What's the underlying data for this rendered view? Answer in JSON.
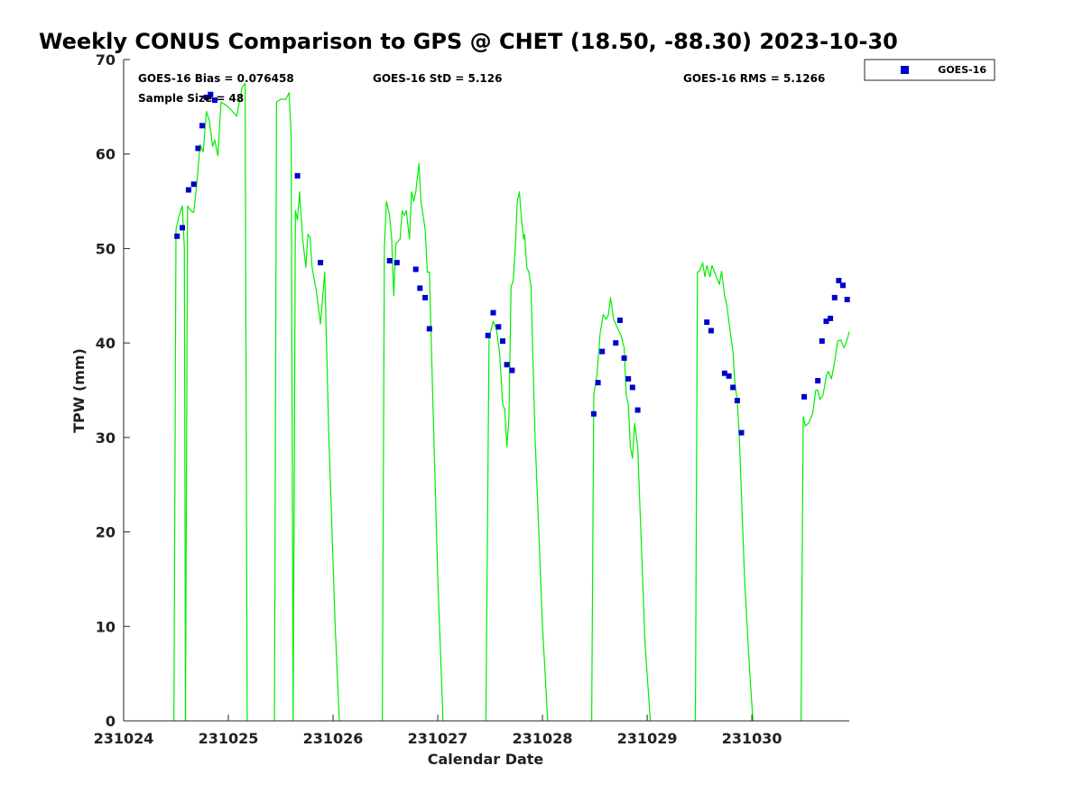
{
  "chart_data": {
    "type": "scatter",
    "title": "Weekly CONUS Comparison to GPS @ CHET (18.50, -88.30) 2023-10-30",
    "xlabel": "Calendar Date",
    "ylabel": "TPW (mm)",
    "xlim": [
      231024,
      231030.93
    ],
    "ylim": [
      0,
      70
    ],
    "x_ticks": [
      231024,
      231025,
      231026,
      231027,
      231028,
      231029,
      231030
    ],
    "x_tick_labels": [
      "231024",
      "231025",
      "231026",
      "231027",
      "231028",
      "231029",
      "231030"
    ],
    "y_ticks": [
      0,
      10,
      20,
      30,
      40,
      50,
      60,
      70
    ],
    "y_tick_labels": [
      "0",
      "10",
      "20",
      "30",
      "40",
      "50",
      "60",
      "70"
    ],
    "grid": false,
    "legend_position": "top-right, outside plot",
    "stats": {
      "bias": "GOES-16 Bias = 0.076458",
      "std": "GOES-16 StD = 5.126",
      "rms": "GOES-16 RMS = 5.1266",
      "sample": "Sample Size = 48"
    },
    "series": [
      {
        "name": "GOES-16",
        "kind": "scatter",
        "color": "#0000cc",
        "points": [
          [
            231024.51,
            51.3
          ],
          [
            231024.56,
            52.2
          ],
          [
            231024.62,
            56.2
          ],
          [
            231024.67,
            56.8
          ],
          [
            231024.71,
            60.6
          ],
          [
            231024.75,
            63.0
          ],
          [
            231024.79,
            66.0
          ],
          [
            231024.83,
            66.3
          ],
          [
            231024.87,
            65.7
          ],
          [
            231025.66,
            57.7
          ],
          [
            231025.88,
            48.5
          ],
          [
            231026.54,
            48.7
          ],
          [
            231026.61,
            48.5
          ],
          [
            231026.79,
            47.8
          ],
          [
            231026.83,
            45.8
          ],
          [
            231026.88,
            44.8
          ],
          [
            231026.92,
            41.5
          ],
          [
            231027.48,
            40.8
          ],
          [
            231027.53,
            43.2
          ],
          [
            231027.58,
            41.7
          ],
          [
            231027.62,
            40.2
          ],
          [
            231027.66,
            37.7
          ],
          [
            231027.71,
            37.1
          ],
          [
            231028.49,
            32.5
          ],
          [
            231028.53,
            35.8
          ],
          [
            231028.57,
            39.1
          ],
          [
            231028.7,
            40.0
          ],
          [
            231028.74,
            42.4
          ],
          [
            231028.78,
            38.4
          ],
          [
            231028.82,
            36.2
          ],
          [
            231028.86,
            35.3
          ],
          [
            231028.91,
            32.9
          ],
          [
            231029.57,
            42.2
          ],
          [
            231029.61,
            41.3
          ],
          [
            231029.74,
            36.8
          ],
          [
            231029.78,
            36.5
          ],
          [
            231029.82,
            35.3
          ],
          [
            231029.86,
            33.9
          ],
          [
            231029.9,
            30.5
          ],
          [
            231030.5,
            34.3
          ],
          [
            231030.63,
            36.0
          ],
          [
            231030.67,
            40.2
          ],
          [
            231030.71,
            42.3
          ],
          [
            231030.75,
            42.6
          ],
          [
            231030.79,
            44.8
          ],
          [
            231030.83,
            46.6
          ],
          [
            231030.87,
            46.1
          ],
          [
            231030.91,
            44.6
          ]
        ]
      },
      {
        "name": "",
        "kind": "line",
        "color": "#00ee00",
        "segments": [
          [
            [
              231024.48,
              0
            ],
            [
              231024.5,
              52.0
            ],
            [
              231024.53,
              53.5
            ],
            [
              231024.56,
              54.5
            ],
            [
              231024.58,
              50.0
            ],
            [
              231024.59,
              0
            ]
          ],
          [
            [
              231024.59,
              0
            ],
            [
              231024.61,
              54.5
            ],
            [
              231024.64,
              54.0
            ],
            [
              231024.67,
              53.8
            ],
            [
              231024.7,
              57.0
            ],
            [
              231024.73,
              61.0
            ],
            [
              231024.76,
              60.2
            ],
            [
              231024.79,
              64.5
            ],
            [
              231024.82,
              63.5
            ],
            [
              231024.85,
              60.8
            ],
            [
              231024.87,
              61.5
            ],
            [
              231024.9,
              59.8
            ],
            [
              231024.93,
              65.5
            ],
            [
              231025.0,
              65.0
            ],
            [
              231025.08,
              64.0
            ],
            [
              231025.13,
              67.0
            ],
            [
              231025.16,
              67.5
            ],
            [
              231025.18,
              0
            ]
          ],
          [
            [
              231025.44,
              0
            ],
            [
              231025.46,
              65.5
            ],
            [
              231025.5,
              65.8
            ],
            [
              231025.55,
              65.8
            ],
            [
              231025.58,
              66.5
            ],
            [
              231025.6,
              62.0
            ],
            [
              231025.62,
              0
            ]
          ],
          [
            [
              231025.62,
              0
            ],
            [
              231025.64,
              54.0
            ],
            [
              231025.66,
              53.0
            ],
            [
              231025.68,
              56.0
            ],
            [
              231025.71,
              51.0
            ],
            [
              231025.74,
              48.0
            ],
            [
              231025.76,
              51.5
            ],
            [
              231025.78,
              51.2
            ],
            [
              231025.8,
              48.0
            ],
            [
              231025.84,
              45.5
            ],
            [
              231025.88,
              42.0
            ],
            [
              231025.92,
              47.5
            ],
            [
              231025.96,
              30.0
            ],
            [
              231026.02,
              10.0
            ],
            [
              231026.06,
              0
            ]
          ],
          [
            [
              231026.47,
              0
            ],
            [
              231026.49,
              50.0
            ],
            [
              231026.51,
              55.0
            ],
            [
              231026.54,
              53.5
            ],
            [
              231026.56,
              51.0
            ],
            [
              231026.58,
              45.0
            ],
            [
              231026.6,
              50.5
            ],
            [
              231026.64,
              51.0
            ],
            [
              231026.66,
              54.0
            ],
            [
              231026.68,
              53.5
            ],
            [
              231026.7,
              54.0
            ],
            [
              231026.73,
              51.0
            ],
            [
              231026.75,
              56.0
            ],
            [
              231026.77,
              55.0
            ],
            [
              231026.79,
              56.0
            ],
            [
              231026.82,
              59.0
            ],
            [
              231026.84,
              55.0
            ],
            [
              231026.88,
              52.0
            ],
            [
              231026.9,
              47.5
            ],
            [
              231026.92,
              47.5
            ],
            [
              231026.95,
              35.0
            ],
            [
              231027.0,
              15.0
            ],
            [
              231027.05,
              0
            ]
          ],
          [
            [
              231027.46,
              0
            ],
            [
              231027.49,
              40.5
            ],
            [
              231027.53,
              42.3
            ],
            [
              231027.56,
              41.5
            ],
            [
              231027.59,
              39.0
            ],
            [
              231027.62,
              33.5
            ],
            [
              231027.64,
              33.0
            ],
            [
              231027.66,
              29.0
            ],
            [
              231027.68,
              32.0
            ],
            [
              231027.7,
              46.0
            ],
            [
              231027.72,
              46.5
            ],
            [
              231027.74,
              50.0
            ],
            [
              231027.76,
              55.0
            ],
            [
              231027.78,
              56.0
            ],
            [
              231027.8,
              53.0
            ],
            [
              231027.82,
              51.0
            ],
            [
              231027.83,
              51.5
            ],
            [
              231027.85,
              48.0
            ],
            [
              231027.87,
              47.5
            ],
            [
              231027.89,
              46.0
            ],
            [
              231027.93,
              30.0
            ],
            [
              231028.0,
              10.0
            ],
            [
              231028.05,
              0
            ]
          ],
          [
            [
              231028.47,
              0
            ],
            [
              231028.49,
              34.5
            ],
            [
              231028.52,
              36.5
            ],
            [
              231028.55,
              41.0
            ],
            [
              231028.58,
              43.0
            ],
            [
              231028.61,
              42.5
            ],
            [
              231028.63,
              43.0
            ],
            [
              231028.65,
              44.8
            ],
            [
              231028.68,
              42.5
            ],
            [
              231028.72,
              41.5
            ],
            [
              231028.75,
              40.8
            ],
            [
              231028.78,
              39.5
            ],
            [
              231028.8,
              34.5
            ],
            [
              231028.82,
              33.5
            ],
            [
              231028.84,
              29.0
            ],
            [
              231028.86,
              27.8
            ],
            [
              231028.88,
              31.5
            ],
            [
              231028.91,
              29.0
            ],
            [
              231028.94,
              20.0
            ],
            [
              231028.98,
              8.0
            ],
            [
              231029.03,
              0
            ]
          ],
          [
            [
              231029.46,
              0
            ],
            [
              231029.48,
              47.5
            ],
            [
              231029.5,
              47.6
            ],
            [
              231029.53,
              48.5
            ],
            [
              231029.55,
              47.0
            ],
            [
              231029.57,
              48.2
            ],
            [
              231029.6,
              47.0
            ],
            [
              231029.62,
              48.2
            ],
            [
              231029.66,
              47.0
            ],
            [
              231029.69,
              46.2
            ],
            [
              231029.71,
              47.6
            ],
            [
              231029.74,
              45.0
            ],
            [
              231029.76,
              44.0
            ],
            [
              231029.79,
              41.5
            ],
            [
              231029.82,
              39.0
            ],
            [
              231029.84,
              35.5
            ],
            [
              231029.86,
              34.0
            ],
            [
              231029.88,
              30.0
            ],
            [
              231029.93,
              15.0
            ],
            [
              231029.98,
              5.0
            ],
            [
              231030.01,
              0
            ]
          ],
          [
            [
              231030.47,
              0
            ],
            [
              231030.49,
              32.2
            ],
            [
              231030.51,
              31.2
            ],
            [
              231030.54,
              31.5
            ],
            [
              231030.58,
              32.5
            ],
            [
              231030.61,
              35.0
            ],
            [
              231030.63,
              35.0
            ],
            [
              231030.65,
              34.0
            ],
            [
              231030.68,
              34.5
            ],
            [
              231030.71,
              36.5
            ],
            [
              231030.73,
              37.0
            ],
            [
              231030.76,
              36.2
            ],
            [
              231030.79,
              38.0
            ],
            [
              231030.82,
              40.2
            ],
            [
              231030.85,
              40.3
            ],
            [
              231030.88,
              39.5
            ],
            [
              231030.9,
              40.0
            ],
            [
              231030.93,
              41.2
            ]
          ]
        ]
      }
    ]
  }
}
